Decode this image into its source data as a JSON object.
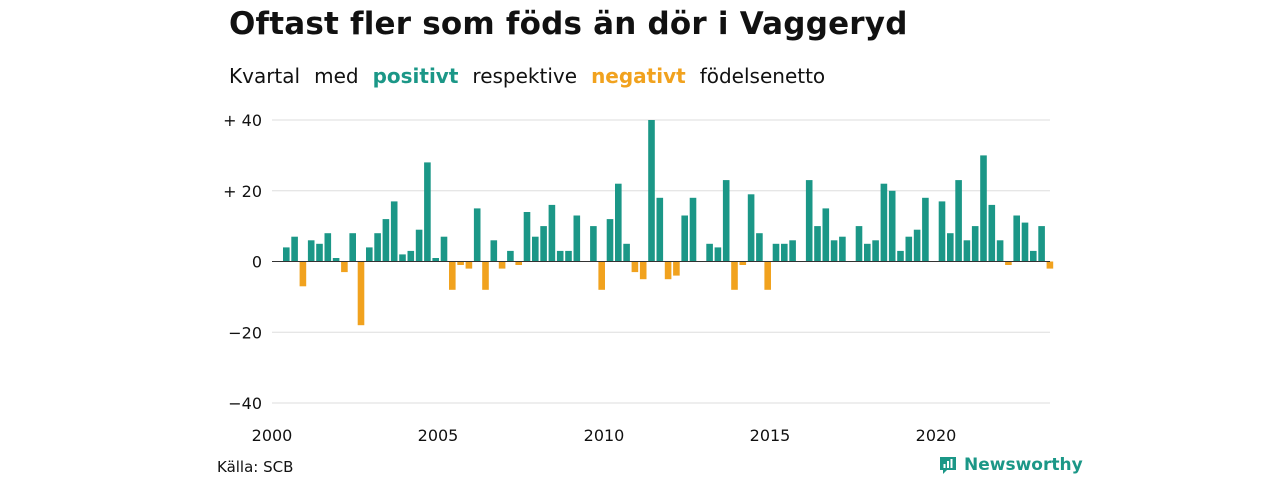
{
  "title": "Oftast fler som föds än dör i Vaggeryd",
  "subtitle": {
    "parts": [
      "Kvartal",
      "med",
      "positivt",
      "respektive",
      "negativt",
      "födelsenetto"
    ]
  },
  "source": "Källa: SCB",
  "brand": {
    "name": "Newsworthy",
    "icon": "newsworthy-logo-icon"
  },
  "colors": {
    "positive": "#1b9787",
    "negative": "#f1a21e",
    "grid": "#dddddd",
    "zero": "#333333"
  },
  "chart_data": {
    "type": "bar",
    "x_unit": "quarter",
    "x_start": "2000 Q1",
    "x_ticks": [
      2000,
      2005,
      2010,
      2015,
      2020
    ],
    "y_ticks": [
      40,
      20,
      0,
      -20,
      -40
    ],
    "y_tick_labels": [
      "+ 40",
      "+ 20",
      "0",
      "−20",
      "−40"
    ],
    "ylim": [
      -40,
      40
    ],
    "grid": true,
    "values": [
      4,
      7,
      -7,
      6,
      5,
      8,
      1,
      -3,
      8,
      -18,
      4,
      8,
      12,
      17,
      2,
      3,
      9,
      28,
      1,
      7,
      -8,
      -1,
      -2,
      15,
      -8,
      6,
      -2,
      3,
      -1,
      14,
      7,
      10,
      16,
      3,
      3,
      13,
      0,
      10,
      -8,
      12,
      22,
      5,
      -3,
      -5,
      40,
      18,
      -5,
      -4,
      13,
      18,
      0,
      5,
      4,
      23,
      -8,
      -1,
      19,
      8,
      -8,
      5,
      5,
      6,
      0,
      23,
      10,
      15,
      6,
      7,
      0,
      10,
      5,
      6,
      22,
      20,
      3,
      7,
      9,
      18,
      0,
      17,
      8,
      23,
      6,
      10,
      30,
      16,
      6,
      -1,
      13,
      11,
      3,
      10,
      -2
    ]
  }
}
